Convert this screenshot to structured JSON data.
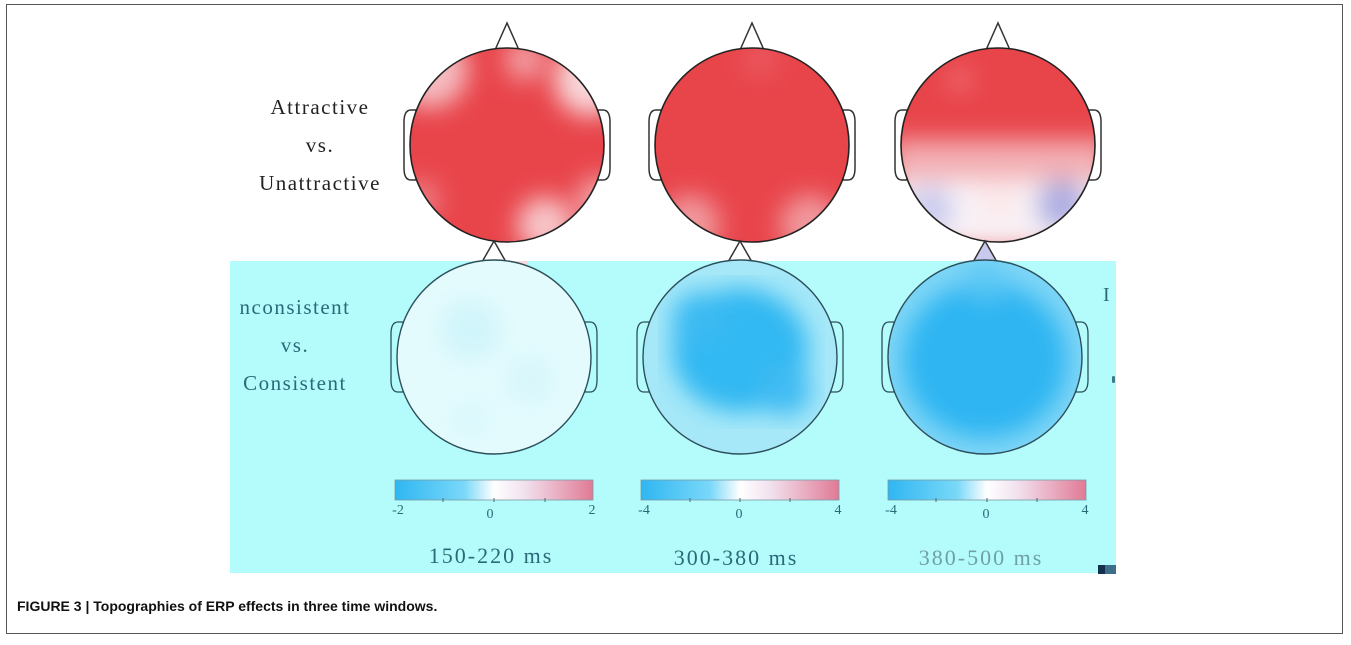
{
  "figure": {
    "caption": "FIGURE 3 | Topographies of ERP effects in three time windows.",
    "rows": [
      {
        "lines": [
          "Attractive",
          "vs.",
          "Unattractive"
        ]
      },
      {
        "lines": [
          "nconsistent",
          "vs.",
          "Consistent"
        ]
      }
    ],
    "stray_text": "I",
    "windows": [
      {
        "label": "150-220 ms",
        "scale": {
          "min": "-2",
          "mid": "0",
          "max": "2"
        }
      },
      {
        "label": "300-380 ms",
        "scale": {
          "min": "-4",
          "mid": "0",
          "max": "4"
        }
      },
      {
        "label": "380-500 ms",
        "scale": {
          "min": "-4",
          "mid": "0",
          "max": "4"
        }
      }
    ],
    "colors": {
      "positive": "#e8454b",
      "neutral": "#ffffff",
      "negative": "#2fb6f2",
      "panel": "#b4fcfc"
    }
  }
}
